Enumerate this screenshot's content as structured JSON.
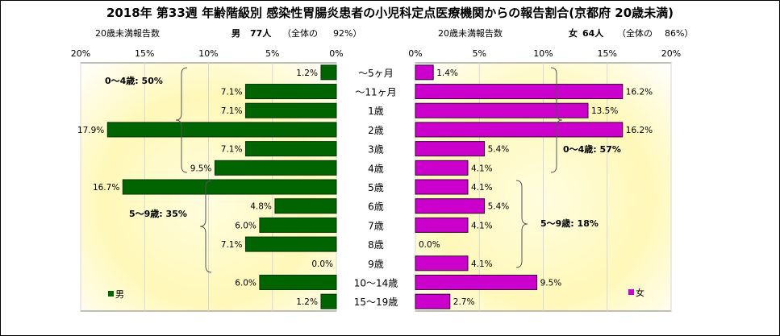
{
  "title": "2018年 第33週 年齢階級別 感染性胃腸炎患者の小児科定点医療機関からの報告割合(京都府 20歳未満)",
  "left_header": {
    "caption": "20歳未満報告数",
    "sex": "男",
    "count": "77人",
    "share_prefix": "（全体の",
    "share": "92%）"
  },
  "right_header": {
    "caption": "20歳未満報告数",
    "sex": "女",
    "count": "64人",
    "share_prefix": "（全体の",
    "share": "86%）"
  },
  "chart_data": [
    {
      "type": "bar",
      "orientation": "horizontal",
      "direction": "right-to-left",
      "categories": [
        "～5ヶ月",
        "～11ヶ月",
        "1歳",
        "2歳",
        "3歳",
        "4歳",
        "5歳",
        "6歳",
        "7歳",
        "8歳",
        "9歳",
        "10～14歳",
        "15～19歳"
      ],
      "series": [
        {
          "name": "男",
          "values": [
            1.2,
            7.1,
            7.1,
            17.9,
            7.1,
            9.5,
            16.7,
            4.8,
            6.0,
            7.1,
            0.0,
            6.0,
            1.2
          ],
          "labels": [
            "1.2%",
            "7.1%",
            "7.1%",
            "17.9%",
            "7.1%",
            "9.5%",
            "16.7%",
            "4.8%",
            "6.0%",
            "7.1%",
            "0.0%",
            "6.0%",
            "1.2%"
          ],
          "color": "#006400"
        }
      ],
      "xlim": [
        0,
        20
      ],
      "xticks": [
        "20%",
        "15%",
        "10%",
        "5%",
        "0%"
      ],
      "annotations": [
        "0～4歳: 50%",
        "5～9歳: 35%"
      ],
      "legend": "bottom-left",
      "background": "yellow radial gradient"
    },
    {
      "type": "bar",
      "orientation": "horizontal",
      "direction": "left-to-right",
      "categories": [
        "～5ヶ月",
        "～11ヶ月",
        "1歳",
        "2歳",
        "3歳",
        "4歳",
        "5歳",
        "6歳",
        "7歳",
        "8歳",
        "9歳",
        "10～14歳",
        "15～19歳"
      ],
      "series": [
        {
          "name": "女",
          "values": [
            1.4,
            16.2,
            13.5,
            16.2,
            5.4,
            4.1,
            4.1,
            5.4,
            4.1,
            0.0,
            4.1,
            9.5,
            2.7
          ],
          "labels": [
            "1.4%",
            "16.2%",
            "13.5%",
            "16.2%",
            "5.4%",
            "4.1%",
            "4.1%",
            "5.4%",
            "4.1%",
            "0.0%",
            "4.1%",
            "9.5%",
            "2.7%"
          ],
          "color": "#cc00cc"
        }
      ],
      "xlim": [
        0,
        20
      ],
      "xticks": [
        "0%",
        "5%",
        "10%",
        "15%",
        "20%"
      ],
      "annotations": [
        "0～4歳: 57%",
        "5～9歳: 18%"
      ],
      "legend": "bottom-right",
      "background": "yellow radial gradient"
    }
  ]
}
